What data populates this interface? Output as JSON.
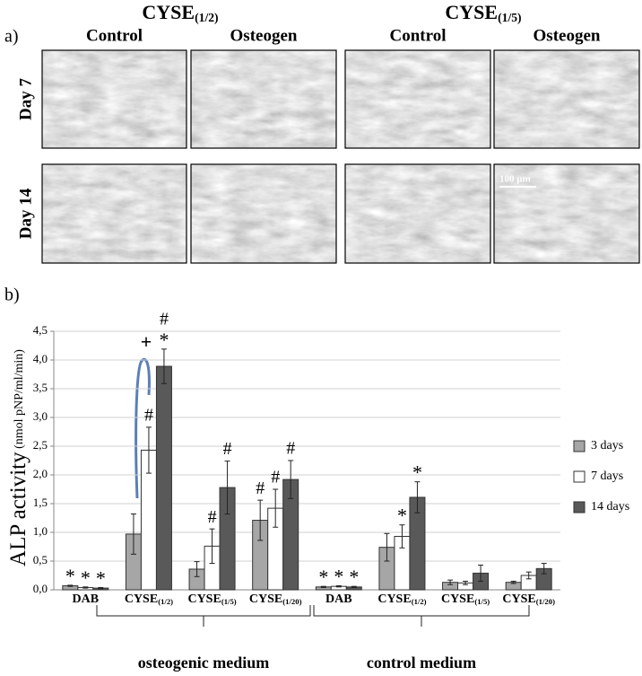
{
  "panel_a": {
    "label": "a)",
    "groups": [
      {
        "title": "CYSE(1/2)",
        "columns": [
          "Control",
          "Osteogen"
        ]
      },
      {
        "title": "CYSE(1/5)",
        "columns": [
          "Control",
          "Osteogen"
        ]
      }
    ],
    "rows": [
      "Day 7",
      "Day 14"
    ],
    "scale_bar": "100 µm"
  },
  "panel_b": {
    "label": "b)",
    "groups": [
      "osteogenic medium",
      "control medium"
    ]
  },
  "chart_data": {
    "type": "bar",
    "ylabel": "ALP activity",
    "ylabel_unit": "(nmol pNP/ml/min)",
    "categories": [
      "DAB",
      "CYSE(1/2)",
      "CYSE(1/5)",
      "CYSE(1/20)",
      "DAB",
      "CYSE(1/2)",
      "CYSE(1/5)",
      "CYSE(1/20)"
    ],
    "series": [
      {
        "name": "3 days",
        "color": "#a6a6a6",
        "values": [
          0.07,
          0.97,
          0.36,
          1.21,
          0.05,
          0.74,
          0.13,
          0.13
        ],
        "errors": [
          0.01,
          0.35,
          0.13,
          0.35,
          0.01,
          0.24,
          0.04,
          0.02
        ],
        "markers": [
          [
            "*"
          ],
          null,
          null,
          [
            "#"
          ],
          [
            "*"
          ],
          null,
          null,
          null
        ]
      },
      {
        "name": "7 days",
        "color": "#ffffff",
        "values": [
          0.04,
          2.43,
          0.76,
          1.42,
          0.06,
          0.93,
          0.12,
          0.25
        ],
        "errors": [
          0.01,
          0.4,
          0.3,
          0.33,
          0.01,
          0.2,
          0.03,
          0.06
        ],
        "markers": [
          [
            "*"
          ],
          [
            "#"
          ],
          [
            "#"
          ],
          [
            "#"
          ],
          [
            "*"
          ],
          [
            "*"
          ],
          null,
          null
        ]
      },
      {
        "name": "14 days",
        "color": "#595959",
        "values": [
          0.03,
          3.89,
          1.78,
          1.92,
          0.05,
          1.61,
          0.29,
          0.37
        ],
        "errors": [
          0.01,
          0.3,
          0.46,
          0.33,
          0.01,
          0.27,
          0.14,
          0.09
        ],
        "markers": [
          [
            "*"
          ],
          [
            "#",
            "*"
          ],
          [
            "#"
          ],
          [
            "#"
          ],
          [
            "*"
          ],
          [
            "*"
          ],
          null,
          null
        ]
      }
    ],
    "annotation": "+",
    "ylim": [
      0,
      4.5
    ],
    "yticks": [
      {
        "value": 0,
        "label": "0,0"
      },
      {
        "value": 0.5,
        "label": "0,5"
      },
      {
        "value": 1,
        "label": "1,0"
      },
      {
        "value": 1.5,
        "label": "1,5"
      },
      {
        "value": 2,
        "label": "2,0"
      },
      {
        "value": 2.5,
        "label": "2,5"
      },
      {
        "value": 3,
        "label": "3,0"
      },
      {
        "value": 3.5,
        "label": "3,5"
      },
      {
        "value": 4,
        "label": "4,0"
      },
      {
        "value": 4.5,
        "label": "4,5"
      }
    ],
    "grid": true,
    "legend": "right"
  }
}
